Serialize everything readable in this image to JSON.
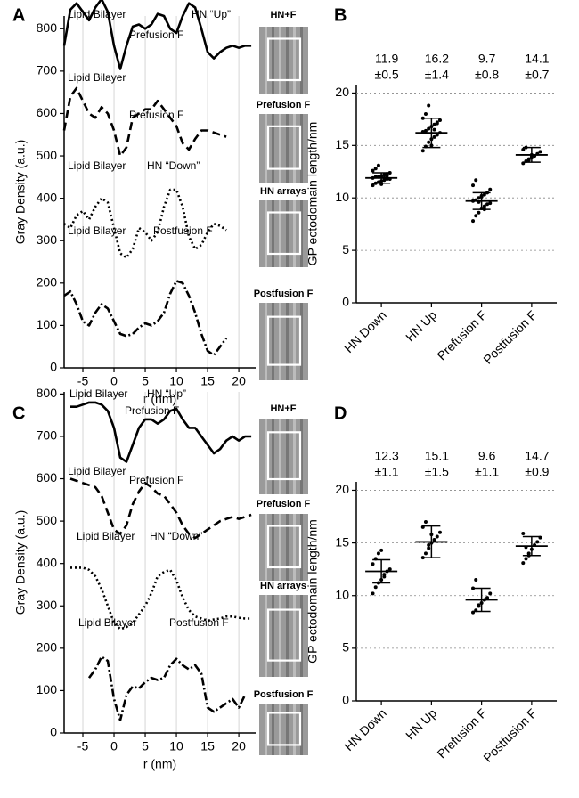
{
  "chart_data": [
    {
      "type": "line",
      "panel": "A",
      "x_label": "r (nm)",
      "y_label": "Gray Density (a.u.)",
      "x": [
        -8,
        -7,
        -6,
        -5,
        -4,
        -3,
        -2,
        -1,
        0,
        1,
        2,
        3,
        4,
        5,
        6,
        7,
        8,
        9,
        10,
        11,
        12,
        13,
        14,
        15,
        16,
        17,
        18,
        19,
        20,
        21,
        22
      ],
      "xlim": [
        -8,
        22.7
      ],
      "xticks": [
        -5,
        0,
        5,
        10,
        15,
        20
      ],
      "ylim": [
        0,
        830
      ],
      "yticks": [
        0,
        100,
        200,
        300,
        400,
        500,
        600,
        700,
        800
      ],
      "grid": "x",
      "color": "#000000",
      "image_labels": [
        "HN+F",
        "Prefusion F",
        "HN arrays",
        "Postfusion F"
      ],
      "series": [
        {
          "dash": "solid",
          "annotations": [
            "Lipid Bilayer",
            "HN “Up”",
            "Prefusion F"
          ],
          "values": [
            760,
            845,
            860,
            840,
            820,
            850,
            870,
            840,
            760,
            705,
            760,
            805,
            810,
            800,
            810,
            835,
            830,
            800,
            790,
            830,
            860,
            850,
            800,
            745,
            730,
            745,
            755,
            760,
            755,
            760,
            760
          ]
        },
        {
          "dash": "dashed",
          "annotations": [
            "Lipid Bilayer",
            "Prefusion F"
          ],
          "values": [
            560,
            640,
            660,
            630,
            600,
            590,
            615,
            600,
            560,
            500,
            520,
            590,
            600,
            610,
            610,
            630,
            610,
            590,
            570,
            530,
            515,
            540,
            560,
            560,
            555,
            550,
            545,
            null,
            null,
            null,
            null
          ]
        },
        {
          "dash": "dotted",
          "annotations": [
            "Lipid Bilayer",
            "HN “Down”"
          ],
          "values": [
            340,
            330,
            360,
            370,
            350,
            380,
            400,
            390,
            330,
            270,
            260,
            280,
            330,
            320,
            300,
            320,
            380,
            420,
            420,
            380,
            310,
            280,
            290,
            320,
            340,
            335,
            325,
            null,
            null,
            null,
            null
          ]
        },
        {
          "dash": "dashdot",
          "annotations": [
            "Lipid Bilayer",
            "Postfusion F"
          ],
          "values": [
            170,
            180,
            150,
            110,
            100,
            130,
            150,
            140,
            110,
            80,
            75,
            80,
            95,
            105,
            100,
            110,
            130,
            175,
            205,
            200,
            170,
            130,
            80,
            40,
            30,
            50,
            70,
            null,
            null,
            null,
            null
          ]
        }
      ]
    },
    {
      "type": "dotplot",
      "panel": "B",
      "y_label": "GP ectodomain length/nm",
      "categories": [
        "HN Down",
        "HN Up",
        "Prefusion F",
        "Postfusion F"
      ],
      "ylim": [
        0,
        20.8
      ],
      "yticks": [
        0,
        5,
        10,
        15,
        20
      ],
      "grid": "y",
      "color": "#000000",
      "means": [
        11.9,
        16.2,
        9.7,
        14.1
      ],
      "errors": [
        0.5,
        1.4,
        0.8,
        0.7
      ],
      "error_labels": [
        "±0.5",
        "±1.4",
        "±0.8",
        "±0.7"
      ],
      "points": [
        [
          11.2,
          11.4,
          11.5,
          11.6,
          11.7,
          11.8,
          11.8,
          11.9,
          12.0,
          12.0,
          12.1,
          12.2,
          12.3,
          12.4,
          12.6,
          12.8,
          13.1,
          11.3,
          11.9,
          12.1
        ],
        [
          14.5,
          14.9,
          15.3,
          15.6,
          15.8,
          16.0,
          16.2,
          16.3,
          16.4,
          16.6,
          16.8,
          17.0,
          17.2,
          17.4,
          17.6,
          18.0,
          18.8,
          15.0,
          16.5,
          17.1
        ],
        [
          7.8,
          8.3,
          8.6,
          9.0,
          9.2,
          9.4,
          9.5,
          9.7,
          9.8,
          10.0,
          10.1,
          10.3,
          10.5,
          10.8,
          11.2,
          11.7,
          9.6,
          10.2,
          8.9
        ],
        [
          13.3,
          13.5,
          13.7,
          13.9,
          14.0,
          14.2,
          14.4,
          14.6,
          14.8,
          13.6,
          14.1
        ]
      ]
    },
    {
      "type": "line",
      "panel": "C",
      "x_label": "r (nm)",
      "y_label": "Gray Density (a.u.)",
      "x": [
        -8,
        -7,
        -6,
        -5,
        -4,
        -3,
        -2,
        -1,
        0,
        1,
        2,
        3,
        4,
        5,
        6,
        7,
        8,
        9,
        10,
        11,
        12,
        13,
        14,
        15,
        16,
        17,
        18,
        19,
        20,
        21,
        22
      ],
      "xlim": [
        -8,
        22.7
      ],
      "xticks": [
        -5,
        0,
        5,
        10,
        15,
        20
      ],
      "ylim": [
        0,
        805
      ],
      "yticks": [
        0,
        100,
        200,
        300,
        400,
        500,
        600,
        700,
        800
      ],
      "grid": "x",
      "color": "#000000",
      "image_labels": [
        "HN+F",
        "Prefusion F",
        "HN arrays",
        "Postfusion F"
      ],
      "series": [
        {
          "dash": "solid",
          "annotations": [
            "Lipid Bilayer",
            "HN “Up”",
            "Prefusion F"
          ],
          "values": [
            null,
            770,
            770,
            775,
            780,
            780,
            775,
            760,
            720,
            650,
            640,
            680,
            720,
            740,
            740,
            730,
            740,
            760,
            765,
            740,
            720,
            720,
            700,
            680,
            660,
            670,
            690,
            700,
            690,
            700,
            700
          ]
        },
        {
          "dash": "dashed",
          "annotations": [
            "Lipid Bilayer",
            "Prefusion F"
          ],
          "values": [
            null,
            600,
            595,
            590,
            585,
            580,
            560,
            520,
            480,
            470,
            490,
            540,
            570,
            590,
            580,
            565,
            560,
            540,
            520,
            490,
            470,
            460,
            470,
            480,
            490,
            500,
            505,
            510,
            505,
            510,
            515
          ]
        },
        {
          "dash": "dotted",
          "annotations": [
            "Lipid Bilayer",
            "HN “Down”"
          ],
          "values": [
            null,
            390,
            390,
            390,
            385,
            370,
            340,
            300,
            260,
            245,
            250,
            260,
            280,
            300,
            330,
            370,
            380,
            385,
            360,
            320,
            290,
            275,
            270,
            265,
            268,
            270,
            275,
            275,
            272,
            270,
            270
          ]
        },
        {
          "dash": "dashdot",
          "annotations": [
            "Lipid Bilayer",
            "Postfusion F"
          ],
          "values": [
            null,
            null,
            null,
            null,
            130,
            150,
            180,
            170,
            80,
            30,
            90,
            110,
            105,
            120,
            130,
            125,
            130,
            160,
            175,
            160,
            150,
            160,
            140,
            60,
            50,
            60,
            70,
            80,
            60,
            90,
            null
          ]
        }
      ]
    },
    {
      "type": "dotplot",
      "panel": "D",
      "y_label": "GP ectodomain length/nm",
      "categories": [
        "HN Down",
        "HN Up",
        "Prefusion F",
        "Postfusion F"
      ],
      "ylim": [
        0,
        20.8
      ],
      "yticks": [
        0,
        5,
        10,
        15,
        20
      ],
      "grid": "y",
      "color": "#000000",
      "means": [
        12.3,
        15.1,
        9.6,
        14.7
      ],
      "errors": [
        1.1,
        1.5,
        1.1,
        0.9
      ],
      "error_labels": [
        "±1.1",
        "±1.5",
        "±1.1",
        "±0.9"
      ],
      "points": [
        [
          10.2,
          10.8,
          11.2,
          11.5,
          12.0,
          12.3,
          12.5,
          13.0,
          13.5,
          14.0,
          14.3,
          11.8
        ],
        [
          13.6,
          14.0,
          14.5,
          15.0,
          15.3,
          15.6,
          16.0,
          16.5,
          17.0,
          14.8,
          15.8
        ],
        [
          8.4,
          8.6,
          9.0,
          9.3,
          9.6,
          9.8,
          10.2,
          10.7,
          11.5,
          9.1
        ],
        [
          13.1,
          13.5,
          14.0,
          14.4,
          14.8,
          15.1,
          15.5,
          15.9,
          14.6,
          13.8
        ]
      ]
    }
  ]
}
